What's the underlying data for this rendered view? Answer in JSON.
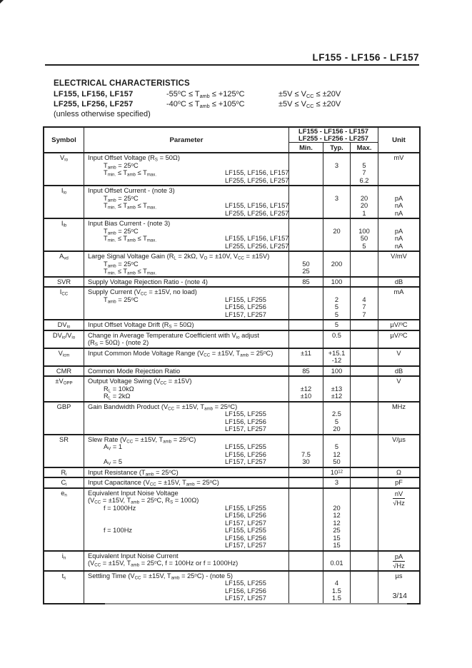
{
  "header": {
    "title": "LF155 - LF156 - LF157"
  },
  "section": {
    "heading": "ELECTRICAL CHARACTERISTICS",
    "conditions": [
      {
        "part": "LF155, LF156, LF157",
        "temp": "-55<sup>o</sup>C ≤ T<sub>amb</sub> ≤ +125<sup>o</sup>C",
        "volt": "±5V ≤ V<sub>CC</sub> ≤ ±20V"
      },
      {
        "part": "LF255, LF256, LF257",
        "temp": "-40<sup>o</sup>C ≤ T<sub>amb</sub> ≤ +105<sup>o</sup>C",
        "volt": "±5V ≤ V<sub>CC</sub> ≤ ±20V"
      }
    ],
    "note": "(unless otherwise specified)"
  },
  "table": {
    "col_symbol": "Symbol",
    "col_parameter": "Parameter",
    "group_line1": "LF155 - LF156 - LF157",
    "group_line2": "LF255 - LF256 - LF257",
    "col_min": "Min.",
    "col_typ": "Typ.",
    "col_max": "Max.",
    "col_unit": "Unit",
    "rows": [
      {
        "symbol": "V<sub>io</sub>",
        "lines": [
          {
            "p": "Input Offset Voltage (R<sub>S</sub> = 50Ω)",
            "ind": 0,
            "unit": "mV"
          },
          {
            "p": "T<sub>amb</sub> = 25<sup>o</sup>C",
            "ind": 1,
            "typ": "3",
            "max": "5"
          },
          {
            "p": "T<sub>min.</sub> ≤ T<sub>amb</sub> ≤ T<sub>max.</sub>",
            "ind": 1,
            "dev": "LF155, LF156, LF157",
            "max": "7"
          },
          {
            "dev": "LF255, LF256, LF257",
            "max": "6.2"
          }
        ]
      },
      {
        "symbol": "I<sub>io</sub>",
        "lines": [
          {
            "p": "Input Offset Current - (note 3)",
            "ind": 0
          },
          {
            "p": "T<sub>amb</sub> = 25<sup>o</sup>C",
            "ind": 1,
            "typ": "3",
            "max": "20",
            "unit": "pA"
          },
          {
            "p": "T<sub>min.</sub> ≤ T<sub>amb</sub> ≤ T<sub>max.</sub>",
            "ind": 1,
            "dev": "LF155, LF156, LF157",
            "max": "20",
            "unit": "nA"
          },
          {
            "dev": "LF255, LF256, LF257",
            "max": "1",
            "unit": "nA"
          }
        ]
      },
      {
        "symbol": "I<sub>ib</sub>",
        "lines": [
          {
            "p": "Input Bias Current - (note 3)",
            "ind": 0
          },
          {
            "p": "T<sub>amb</sub> = 25<sup>o</sup>C",
            "ind": 1,
            "typ": "20",
            "max": "100",
            "unit": "pA"
          },
          {
            "p": "T<sub>min.</sub> ≤ T<sub>amb</sub> ≤ T<sub>max.</sub>",
            "ind": 1,
            "dev": "LF155, LF156, LF157",
            "max": "50",
            "unit": "nA"
          },
          {
            "dev": "LF255, LF256, LF257",
            "max": "5",
            "unit": "nA"
          }
        ]
      },
      {
        "symbol": "A<sub>vd</sub>",
        "lines": [
          {
            "p": "Large Signal Voltage Gain (R<sub>L</sub> = 2kΩ, V<sub>O</sub> = ±10V, V<sub>CC</sub> = ±15V)",
            "ind": 0,
            "unit": "V/mV"
          },
          {
            "p": "T<sub>amb</sub> = 25<sup>o</sup>C",
            "ind": 1,
            "min": "50",
            "typ": "200"
          },
          {
            "p": "T<sub>min.</sub> ≤ T<sub>amb</sub> ≤ T<sub>max.</sub>",
            "ind": 1,
            "min": "25"
          }
        ]
      },
      {
        "symbol": "SVR",
        "lines": [
          {
            "p": "Supply Voltage Rejection Ratio - (note 4)",
            "ind": 0,
            "min": "85",
            "typ": "100",
            "unit": "dB"
          }
        ]
      },
      {
        "symbol": "I<sub>CC</sub>",
        "lines": [
          {
            "p": "Supply Current (V<sub>CC</sub> = ±15V, no load)",
            "ind": 0,
            "unit": "mA"
          },
          {
            "p": "T<sub>amb</sub> = 25<sup>o</sup>C",
            "ind": 1,
            "dev": "LF155, LF255",
            "typ": "2",
            "max": "4"
          },
          {
            "dev": "LF156, LF256",
            "typ": "5",
            "max": "7"
          },
          {
            "dev": "LF157, LF257",
            "typ": "5",
            "max": "7"
          }
        ]
      },
      {
        "symbol": "DV<sub>io</sub>",
        "lines": [
          {
            "p": "Input Offset Voltage Drift (R<sub>S</sub> = 50Ω)",
            "ind": 0,
            "typ": "5",
            "unit": "µV/<sup>o</sup>C"
          }
        ]
      },
      {
        "symbol": "DV<sub>io</sub>/V<sub>io</sub>",
        "lines": [
          {
            "p": "Change in Average Temperature Coefficient with V<sub>io</sub> adjust",
            "ind": 0,
            "typ": "0.5",
            "unit": "µV/<sup>o</sup>C"
          },
          {
            "p": "(R<sub>S</sub> = 50Ω) - (note 2)",
            "ind": 0
          }
        ]
      },
      {
        "symbol": "V<sub>icm</sub>",
        "lines": [
          {
            "p": "Input Common Mode Voltage Range (V<sub>CC</sub> = ±15V, T<sub>amb</sub> = 25<sup>o</sup>C)",
            "ind": 0,
            "min": "±11",
            "typ": "+15.1",
            "unit": "V"
          },
          {
            "typ": "-12"
          }
        ]
      },
      {
        "symbol": "CMR",
        "lines": [
          {
            "p": "Common Mode Rejection Ratio",
            "ind": 0,
            "min": "85",
            "typ": "100",
            "unit": "dB"
          }
        ]
      },
      {
        "symbol": "±V<sub>OPP</sub>",
        "lines": [
          {
            "p": "Output Voltage Swing (V<sub>CC</sub> = ±15V)",
            "ind": 0,
            "unit": "V"
          },
          {
            "p": "R<sub>L</sub> = 10kΩ",
            "ind": 1,
            "min": "±12",
            "typ": "±13"
          },
          {
            "p": "R<sub>L</sub> = 2kΩ",
            "ind": 1,
            "min": "±10",
            "typ": "±12"
          }
        ]
      },
      {
        "symbol": "GBP",
        "lines": [
          {
            "p": "Gain Bandwidth Product (V<sub>CC</sub> = ±15V, T<sub>amb</sub> = 25<sup>o</sup>C)",
            "ind": 0,
            "unit": "MHz"
          },
          {
            "dev": "LF155, LF255",
            "typ": "2.5"
          },
          {
            "dev": "LF156, LF256",
            "typ": "5"
          },
          {
            "dev": "LF157, LF257",
            "typ": "20"
          }
        ]
      },
      {
        "symbol": "SR",
        "lines": [
          {
            "p": "Slew Rate (V<sub>CC</sub> = ±15V, T<sub>amb</sub> = 25<sup>o</sup>C)",
            "ind": 0,
            "unit": "V/µs"
          },
          {
            "p": "A<sub>V</sub> = 1",
            "ind": 1,
            "dev": "LF155, LF255",
            "typ": "5"
          },
          {
            "dev": "LF156, LF256",
            "min": "7.5",
            "typ": "12"
          },
          {
            "p": "A<sub>V</sub> = 5",
            "ind": 1,
            "dev": "LF157, LF257",
            "min": "30",
            "typ": "50"
          }
        ]
      },
      {
        "symbol": "R<sub>i</sub>",
        "lines": [
          {
            "p": "Input Resistance (T<sub>amb</sub> = 25<sup>o</sup>C)",
            "ind": 0,
            "typ": "10<sup>12</sup>",
            "unit": "Ω"
          }
        ]
      },
      {
        "symbol": "C<sub>i</sub>",
        "lines": [
          {
            "p": "Input Capacitance  (V<sub>CC</sub> = ±15V, T<sub>amb</sub> = 25<sup>o</sup>C)",
            "ind": 0,
            "typ": "3",
            "unit": "pF"
          }
        ]
      },
      {
        "symbol": "e<sub>n</sub>",
        "unit_frac": {
          "top": "nV",
          "bottom": "√Hz"
        },
        "lines": [
          {
            "p": "Equivalent Input Noise Voltage",
            "ind": 0
          },
          {
            "p": "(V<sub>CC</sub> = ±15V, T<sub>amb</sub> = 25<sup>o</sup>C, R<sub>S</sub> = 100Ω)",
            "ind": 0
          },
          {
            "p": "f = 1000Hz",
            "ind": 1,
            "dev": "LF155, LF255",
            "typ": "20"
          },
          {
            "dev": "LF156, LF256",
            "typ": "12"
          },
          {
            "dev": "LF157, LF257",
            "typ": "12"
          },
          {
            "p": "f = 100Hz",
            "ind": 1,
            "dev": "LF155, LF255",
            "typ": "25"
          },
          {
            "dev": "LF156, LF256",
            "typ": "15"
          },
          {
            "dev": "LF157, LF257",
            "typ": "15"
          }
        ]
      },
      {
        "symbol": "i<sub>n</sub>",
        "unit_frac": {
          "top": "pA",
          "bottom": "√Hz"
        },
        "lines": [
          {
            "p": "Equivalent Input Noise Current",
            "ind": 0
          },
          {
            "p": "(V<sub>CC</sub> = ±15V, T<sub>amb</sub> = 25<sup>o</sup>C, f = 100Hz or f = 1000Hz)",
            "ind": 0,
            "typ": "0.01"
          }
        ]
      },
      {
        "symbol": "t<sub>s</sub>",
        "lines": [
          {
            "p": "Settling Time (V<sub>CC</sub> = ±15V, T<sub>amb</sub> = 25<sup>o</sup>C) - (note 5)",
            "ind": 0,
            "unit": "µs"
          },
          {
            "dev": "LF155, LF255",
            "typ": "4"
          },
          {
            "dev": "LF156, LF256",
            "typ": "1.5"
          },
          {
            "dev": "LF157, LF257",
            "typ": "1.5"
          }
        ]
      }
    ]
  },
  "footer": {
    "page": "3/14"
  }
}
